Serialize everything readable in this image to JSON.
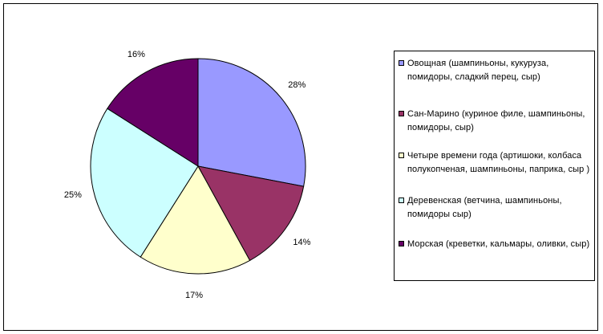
{
  "chart_data": {
    "type": "pie",
    "title": "",
    "start_angle_deg": 0,
    "direction": "clockwise",
    "slices": [
      {
        "label": "Овощная (шампиньоны, кукуруза, помидоры, сладкий перец, сыр)",
        "value": 28,
        "display": "28%",
        "color": "#9999ff"
      },
      {
        "label": "Сан-Марино (куриное филе, шампиньоны, помидоры, сыр)",
        "value": 14,
        "display": "14%",
        "color": "#993366"
      },
      {
        "label": "Четыре времени года (артишоки, колбаса полукопченая, шампиньоны, паприка, сыр )",
        "value": 17,
        "display": "17%",
        "color": "#ffffcc"
      },
      {
        "label": "Деревенская (ветчина, шампиньоны, помидоры сыр)",
        "value": 25,
        "display": "25%",
        "color": "#ccffff"
      },
      {
        "label": "Морская (креветки, кальмары, оливки, сыр)",
        "value": 16,
        "display": "16%",
        "color": "#660066"
      }
    ],
    "legend_placement": "right",
    "border_color": "#000000"
  }
}
